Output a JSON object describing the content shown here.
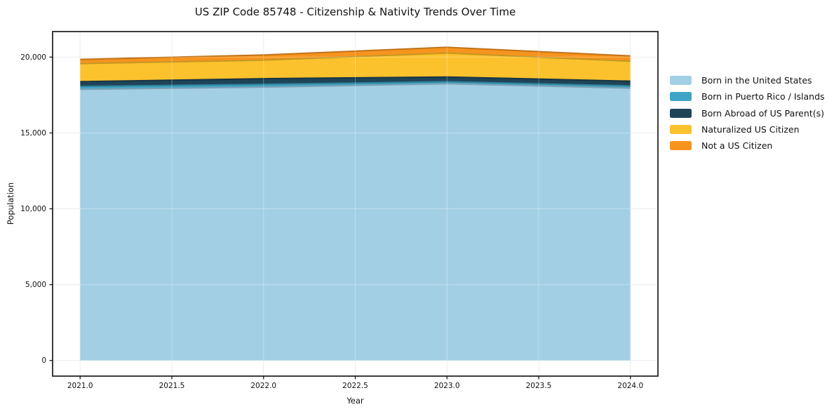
{
  "chart_data": {
    "type": "area",
    "stacked": true,
    "title": "US ZIP Code 85748 - Citizenship & Nativity Trends Over Time",
    "xlabel": "Year",
    "ylabel": "Population",
    "x": [
      2021,
      2022,
      2023,
      2024
    ],
    "series": [
      {
        "name": "Born in the United States",
        "color": "#a3cfe5",
        "values": [
          17870,
          18020,
          18240,
          17950
        ]
      },
      {
        "name": "Born in Puerto Rico / Islands",
        "color": "#40a5c4",
        "values": [
          200,
          190,
          140,
          155
        ]
      },
      {
        "name": "Born Abroad of US Parent(s)",
        "color": "#1f4457",
        "values": [
          310,
          370,
          310,
          310
        ]
      },
      {
        "name": "Naturalized US Citizen",
        "color": "#fcc22d",
        "values": [
          1190,
          1220,
          1575,
          1310
        ]
      },
      {
        "name": "Not a US Citizen",
        "color": "#f7941e",
        "values": [
          280,
          340,
          385,
          355
        ]
      }
    ],
    "xlim": [
      2020.85,
      2024.15
    ],
    "ylim": [
      -1032,
      21683
    ],
    "xticks": {
      "values": [
        2021.0,
        2021.5,
        2022.0,
        2022.5,
        2023.0,
        2023.5,
        2024.0
      ],
      "labels": [
        "2021.0",
        "2021.5",
        "2022.0",
        "2022.5",
        "2023.0",
        "2023.5",
        "2024.0"
      ]
    },
    "yticks": {
      "values": [
        0,
        5000,
        10000,
        15000,
        20000
      ],
      "labels": [
        "0",
        "5,000",
        "10,000",
        "15,000",
        "20,000"
      ]
    },
    "grid": true,
    "legend_position": "center-right-outside",
    "background": "#ffffff",
    "axis_color": "#1a1a1a",
    "grid_color": "#e6e6e6"
  }
}
